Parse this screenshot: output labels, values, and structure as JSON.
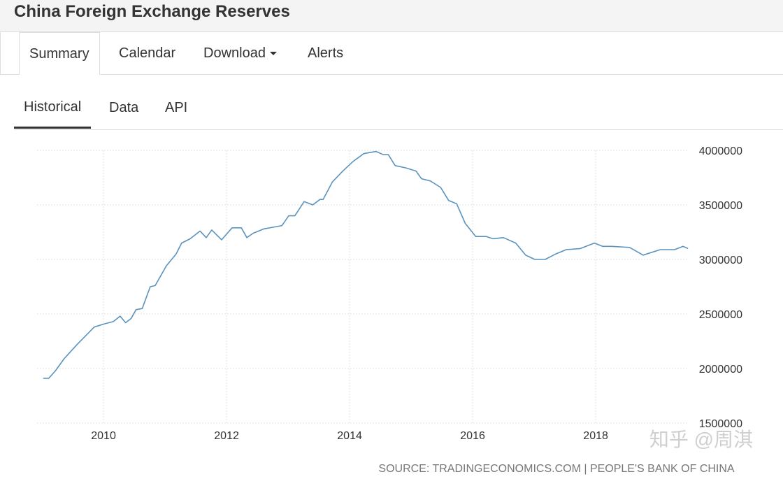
{
  "header": {
    "title": "China Foreign Exchange Reserves"
  },
  "tabs": [
    "Summary",
    "Calendar",
    "Download",
    "Alerts"
  ],
  "subtabs": [
    "Historical",
    "Data",
    "API"
  ],
  "chart_data": {
    "type": "line",
    "x": [
      2009.02,
      2009.11,
      2009.22,
      2009.36,
      2009.57,
      2009.85,
      2010.02,
      2010.16,
      2010.27,
      2010.36,
      2010.45,
      2010.53,
      2010.63,
      2010.76,
      2010.84,
      2011.02,
      2011.18,
      2011.27,
      2011.41,
      2011.57,
      2011.67,
      2011.76,
      2011.92,
      2012.09,
      2012.24,
      2012.33,
      2012.43,
      2012.61,
      2012.9,
      2013.01,
      2013.11,
      2013.26,
      2013.4,
      2013.52,
      2013.57,
      2013.72,
      2013.89,
      2014.06,
      2014.23,
      2014.43,
      2014.55,
      2014.63,
      2014.74,
      2014.91,
      2015.08,
      2015.17,
      2015.31,
      2015.48,
      2015.61,
      2015.74,
      2015.88,
      2016.05,
      2016.22,
      2016.33,
      2016.5,
      2016.7,
      2016.86,
      2017.01,
      2017.18,
      2017.35,
      2017.52,
      2017.75,
      2017.98,
      2018.11,
      2018.26,
      2018.55,
      2018.77,
      2019.05,
      2019.28,
      2019.42,
      2019.5
    ],
    "values": [
      1910000,
      1910000,
      1980000,
      2090000,
      2220000,
      2380000,
      2410000,
      2430000,
      2480000,
      2420000,
      2460000,
      2540000,
      2550000,
      2750000,
      2760000,
      2940000,
      3050000,
      3150000,
      3190000,
      3260000,
      3200000,
      3270000,
      3180000,
      3290000,
      3290000,
      3200000,
      3240000,
      3280000,
      3310000,
      3400000,
      3400000,
      3530000,
      3500000,
      3550000,
      3550000,
      3710000,
      3810000,
      3900000,
      3970000,
      3990000,
      3960000,
      3960000,
      3860000,
      3840000,
      3810000,
      3740000,
      3720000,
      3660000,
      3540000,
      3510000,
      3330000,
      3210000,
      3210000,
      3190000,
      3200000,
      3150000,
      3040000,
      3000000,
      3000000,
      3050000,
      3090000,
      3100000,
      3150000,
      3120000,
      3120000,
      3110000,
      3040000,
      3090000,
      3090000,
      3120000,
      3100000
    ],
    "color": "#5b93bd",
    "xlim": [
      2008.92,
      2019.51
    ],
    "xticks": [
      2010,
      2012,
      2014,
      2016,
      2018
    ],
    "ylim": [
      1500000,
      4000000
    ],
    "yticks": [
      1500000,
      2000000,
      2500000,
      3000000,
      3500000,
      4000000
    ],
    "grid": true,
    "source": "SOURCE: TRADINGECONOMICS.COM | PEOPLE'S BANK OF CHINA",
    "watermark": "知乎 @周淇"
  }
}
